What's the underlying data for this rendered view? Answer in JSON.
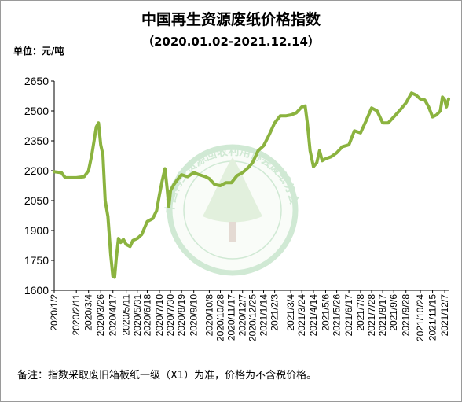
{
  "title": "中国再生资源废纸价格指数",
  "subtitle": "（2020.01.02-2021.12.14）",
  "unit_label": "单位：元/吨",
  "note": "备注：指数采取废旧箱板纸一级（X1）为准，价格为不含税价格。",
  "watermark_text": "中国再生资源回收利用协会废纸分会",
  "colors": {
    "line": "#8bb33f",
    "watermark": "#2e9d3f",
    "axis": "#000000"
  },
  "chart_data": {
    "type": "line",
    "title": "中国再生资源废纸价格指数",
    "subtitle": "（2020.01.02-2021.12.14）",
    "ylabel": "单位：元/吨",
    "ylim": [
      1600,
      2650
    ],
    "yticks": [
      1600,
      1750,
      1900,
      2050,
      2200,
      2350,
      2500,
      2650
    ],
    "xlim": [
      "2020/1/2",
      "2021/12/14"
    ],
    "grid": false,
    "legend": "none",
    "xticks": [
      "2020/1/2",
      "2020/2/11",
      "2020/3/4",
      "2020/3/26",
      "2020/4/17",
      "2020/5/11",
      "2020/5/31",
      "2020/6/18",
      "2020/7/10",
      "2020/7/30",
      "2020/8/19",
      "2020/9/10",
      "2020/10/8",
      "2020/10/28",
      "2020/11/17",
      "2020/12/7",
      "2020/12/25",
      "2021/1/14",
      "2021/2/3",
      "2021/3/4",
      "2021/3/24",
      "2021/4/14",
      "2021/5/6",
      "2021/5/26",
      "2021/6/17",
      "2021/7/8",
      "2021/7/28",
      "2021/8/17",
      "2021/9/6",
      "2021/9/28",
      "2021/10/24",
      "2021/11/15",
      "2021/12/7"
    ],
    "series": [
      {
        "points": [
          [
            "2020/1/2",
            2195
          ],
          [
            "2020/1/15",
            2190
          ],
          [
            "2020/1/22",
            2165
          ],
          [
            "2020/2/11",
            2165
          ],
          [
            "2020/2/25",
            2170
          ],
          [
            "2020/3/4",
            2200
          ],
          [
            "2020/3/10",
            2280
          ],
          [
            "2020/3/18",
            2420
          ],
          [
            "2020/3/22",
            2440
          ],
          [
            "2020/3/26",
            2330
          ],
          [
            "2020/3/30",
            2280
          ],
          [
            "2020/4/3",
            2050
          ],
          [
            "2020/4/8",
            1970
          ],
          [
            "2020/4/13",
            1780
          ],
          [
            "2020/4/17",
            1670
          ],
          [
            "2020/4/20",
            1665
          ],
          [
            "2020/4/23",
            1760
          ],
          [
            "2020/4/27",
            1860
          ],
          [
            "2020/5/1",
            1840
          ],
          [
            "2020/5/6",
            1855
          ],
          [
            "2020/5/11",
            1830
          ],
          [
            "2020/5/18",
            1820
          ],
          [
            "2020/5/23",
            1850
          ],
          [
            "2020/5/31",
            1860
          ],
          [
            "2020/6/8",
            1880
          ],
          [
            "2020/6/18",
            1945
          ],
          [
            "2020/6/28",
            1960
          ],
          [
            "2020/7/5",
            2000
          ],
          [
            "2020/7/10",
            2080
          ],
          [
            "2020/7/15",
            2150
          ],
          [
            "2020/7/20",
            2210
          ],
          [
            "2020/7/24",
            2110
          ],
          [
            "2020/7/27",
            2020
          ],
          [
            "2020/7/30",
            2100
          ],
          [
            "2020/8/5",
            2130
          ],
          [
            "2020/8/10",
            2150
          ],
          [
            "2020/8/19",
            2180
          ],
          [
            "2020/8/30",
            2170
          ],
          [
            "2020/9/10",
            2190
          ],
          [
            "2020/9/20",
            2180
          ],
          [
            "2020/10/1",
            2170
          ],
          [
            "2020/10/8",
            2160
          ],
          [
            "2020/10/18",
            2130
          ],
          [
            "2020/10/28",
            2125
          ],
          [
            "2020/11/7",
            2140
          ],
          [
            "2020/11/17",
            2140
          ],
          [
            "2020/11/27",
            2175
          ],
          [
            "2020/12/7",
            2190
          ],
          [
            "2020/12/17",
            2215
          ],
          [
            "2020/12/25",
            2240
          ],
          [
            "2021/1/4",
            2300
          ],
          [
            "2021/1/14",
            2325
          ],
          [
            "2021/1/24",
            2380
          ],
          [
            "2021/2/3",
            2440
          ],
          [
            "2021/2/13",
            2475
          ],
          [
            "2021/2/23",
            2475
          ],
          [
            "2021/3/4",
            2480
          ],
          [
            "2021/3/14",
            2490
          ],
          [
            "2021/3/24",
            2520
          ],
          [
            "2021/3/30",
            2525
          ],
          [
            "2021/4/3",
            2440
          ],
          [
            "2021/4/8",
            2300
          ],
          [
            "2021/4/14",
            2220
          ],
          [
            "2021/4/20",
            2240
          ],
          [
            "2021/4/25",
            2300
          ],
          [
            "2021/4/30",
            2250
          ],
          [
            "2021/5/6",
            2260
          ],
          [
            "2021/5/16",
            2270
          ],
          [
            "2021/5/26",
            2290
          ],
          [
            "2021/6/5",
            2320
          ],
          [
            "2021/6/17",
            2330
          ],
          [
            "2021/6/27",
            2400
          ],
          [
            "2021/7/8",
            2390
          ],
          [
            "2021/7/18",
            2450
          ],
          [
            "2021/7/28",
            2515
          ],
          [
            "2021/8/7",
            2500
          ],
          [
            "2021/8/17",
            2440
          ],
          [
            "2021/8/27",
            2440
          ],
          [
            "2021/9/6",
            2470
          ],
          [
            "2021/9/16",
            2500
          ],
          [
            "2021/9/28",
            2540
          ],
          [
            "2021/10/8",
            2590
          ],
          [
            "2021/10/16",
            2580
          ],
          [
            "2021/10/24",
            2560
          ],
          [
            "2021/11/1",
            2555
          ],
          [
            "2021/11/8",
            2520
          ],
          [
            "2021/11/15",
            2470
          ],
          [
            "2021/11/22",
            2480
          ],
          [
            "2021/11/29",
            2500
          ],
          [
            "2021/12/3",
            2570
          ],
          [
            "2021/12/7",
            2555
          ],
          [
            "2021/12/10",
            2520
          ],
          [
            "2021/12/14",
            2560
          ]
        ]
      }
    ]
  }
}
